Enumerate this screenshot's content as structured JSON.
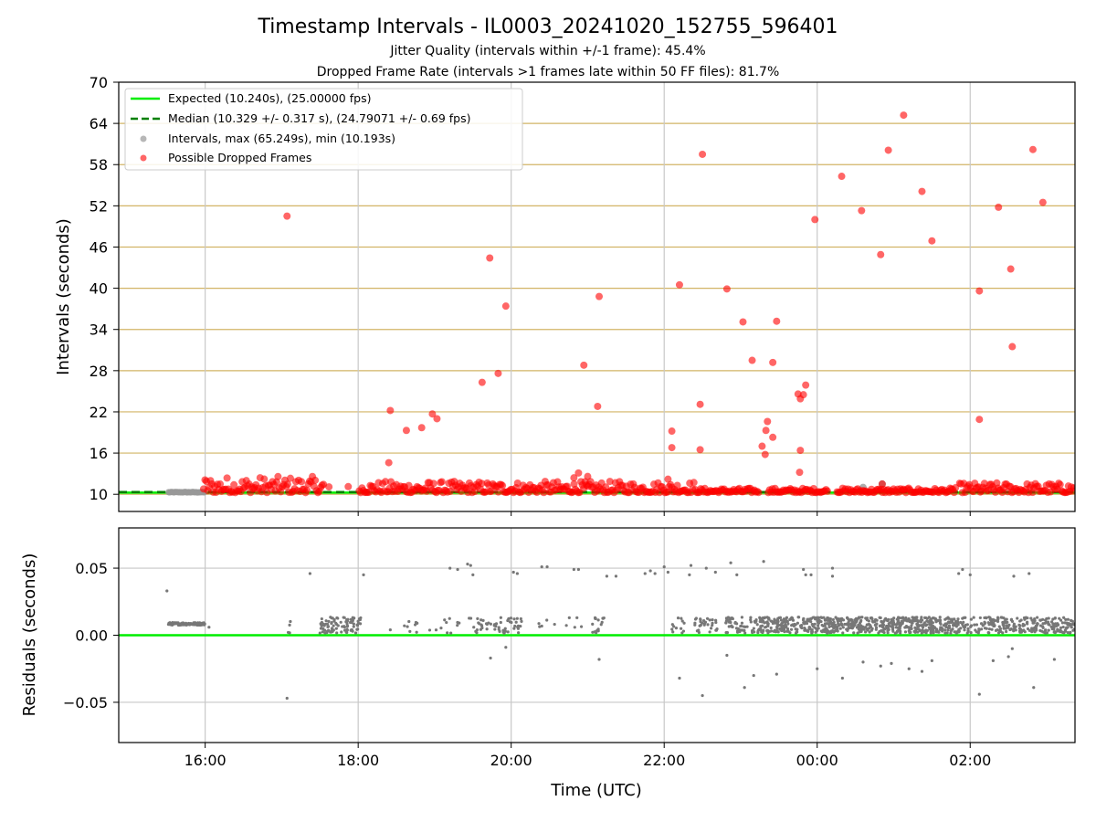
{
  "chart_data": [
    {
      "type": "scatter",
      "title": "Timestamp Intervals - IL0003_20241020_152755_596401",
      "subtitles": [
        "Jitter Quality (intervals within +/-1 frame): 45.4%",
        "Dropped Frame Rate (intervals >1 frames late within 50 FF files): 81.7%"
      ],
      "xlabel": "",
      "ylabel": "Intervals (seconds)",
      "xlim_hours": [
        14.87,
        27.37
      ],
      "ylim": [
        7.5,
        70
      ],
      "yticks": [
        10,
        16,
        22,
        28,
        34,
        40,
        46,
        52,
        58,
        64,
        70
      ],
      "xticks": [
        {
          "value": 16,
          "label": "16:00"
        },
        {
          "value": 18,
          "label": "18:00"
        },
        {
          "value": 20,
          "label": "20:00"
        },
        {
          "value": 22,
          "label": "22:00"
        },
        {
          "value": 24,
          "label": "00:00"
        },
        {
          "value": 26,
          "label": "02:00"
        }
      ],
      "grid": true,
      "legend_position": "upper-left",
      "expected_interval": 10.24,
      "median_interval": 10.329,
      "colors": {
        "expected": "#00ee00",
        "median": "#008000",
        "intervals": "#999999",
        "dropped": "#ff0000",
        "hgrid": "#d2b466",
        "vgrid": "#c8c8c8"
      },
      "legend": [
        {
          "label": "Expected (10.240s), (25.00000 fps)",
          "marker": "solid-line",
          "color": "#00ee00"
        },
        {
          "label": "Median (10.329 +/- 0.317 s), (24.79071 +/- 0.69 fps)",
          "marker": "dashed-line",
          "color": "#008000"
        },
        {
          "label": "Intervals, max (65.249s), min (10.193s)",
          "marker": "dot",
          "color": "#999999"
        },
        {
          "label": "Possible Dropped Frames",
          "marker": "dot",
          "color": "#ff0000"
        }
      ],
      "baseline_band": {
        "y_low": 10.2,
        "y_high": 11.9,
        "x_start": 15.55,
        "x_end": 27.37
      },
      "dropped_frames": [
        {
          "x": 17.07,
          "y": 50.5
        },
        {
          "x": 18.42,
          "y": 22.2
        },
        {
          "x": 18.4,
          "y": 14.6
        },
        {
          "x": 18.63,
          "y": 19.3
        },
        {
          "x": 18.83,
          "y": 19.7
        },
        {
          "x": 18.97,
          "y": 21.7
        },
        {
          "x": 19.03,
          "y": 21.0
        },
        {
          "x": 19.62,
          "y": 26.3
        },
        {
          "x": 19.72,
          "y": 44.4
        },
        {
          "x": 19.83,
          "y": 27.6
        },
        {
          "x": 19.93,
          "y": 37.4
        },
        {
          "x": 20.95,
          "y": 28.8
        },
        {
          "x": 21.15,
          "y": 38.8
        },
        {
          "x": 21.13,
          "y": 22.8
        },
        {
          "x": 22.1,
          "y": 19.2
        },
        {
          "x": 22.1,
          "y": 16.8
        },
        {
          "x": 22.2,
          "y": 40.5
        },
        {
          "x": 22.47,
          "y": 23.1
        },
        {
          "x": 22.47,
          "y": 16.5
        },
        {
          "x": 22.5,
          "y": 59.5
        },
        {
          "x": 22.82,
          "y": 39.9
        },
        {
          "x": 23.03,
          "y": 35.1
        },
        {
          "x": 23.15,
          "y": 29.5
        },
        {
          "x": 23.28,
          "y": 17.0
        },
        {
          "x": 23.32,
          "y": 15.8
        },
        {
          "x": 23.33,
          "y": 19.3
        },
        {
          "x": 23.35,
          "y": 20.6
        },
        {
          "x": 23.42,
          "y": 18.3
        },
        {
          "x": 23.42,
          "y": 29.2
        },
        {
          "x": 23.47,
          "y": 35.2
        },
        {
          "x": 23.75,
          "y": 24.6
        },
        {
          "x": 23.78,
          "y": 23.9
        },
        {
          "x": 23.82,
          "y": 24.5
        },
        {
          "x": 23.85,
          "y": 25.9
        },
        {
          "x": 23.78,
          "y": 16.4
        },
        {
          "x": 23.77,
          "y": 13.2
        },
        {
          "x": 23.97,
          "y": 50.0
        },
        {
          "x": 24.32,
          "y": 56.3
        },
        {
          "x": 24.58,
          "y": 51.3
        },
        {
          "x": 24.83,
          "y": 44.9
        },
        {
          "x": 24.93,
          "y": 60.1
        },
        {
          "x": 25.13,
          "y": 65.2
        },
        {
          "x": 25.37,
          "y": 54.1
        },
        {
          "x": 25.5,
          "y": 46.9
        },
        {
          "x": 26.12,
          "y": 39.6
        },
        {
          "x": 26.12,
          "y": 20.9
        },
        {
          "x": 26.37,
          "y": 51.8
        },
        {
          "x": 26.53,
          "y": 42.8
        },
        {
          "x": 26.55,
          "y": 31.5
        },
        {
          "x": 26.82,
          "y": 60.2
        },
        {
          "x": 26.95,
          "y": 52.5
        },
        {
          "x": 20.88,
          "y": 13.1
        },
        {
          "x": 20.82,
          "y": 12.4
        },
        {
          "x": 21.0,
          "y": 12.6
        },
        {
          "x": 22.05,
          "y": 12.2
        },
        {
          "x": 24.85,
          "y": 11.5
        }
      ]
    },
    {
      "type": "scatter",
      "title": "",
      "xlabel": "Time (UTC)",
      "ylabel": "Residuals (seconds)",
      "xlim_hours": [
        14.87,
        27.37
      ],
      "ylim": [
        -0.08,
        0.08
      ],
      "yticks": [
        {
          "value": 0.05,
          "label": "0.05"
        },
        {
          "value": 0.0,
          "label": "0.00"
        },
        {
          "value": -0.05,
          "label": "−0.05"
        }
      ],
      "grid": true,
      "zero_line_color": "#00ee00",
      "point_color": "#777777",
      "outliers": [
        {
          "x": 15.5,
          "y": 0.033
        },
        {
          "x": 17.07,
          "y": -0.047
        },
        {
          "x": 17.37,
          "y": 0.046
        },
        {
          "x": 18.07,
          "y": 0.045
        },
        {
          "x": 19.2,
          "y": 0.05
        },
        {
          "x": 19.3,
          "y": 0.049
        },
        {
          "x": 19.43,
          "y": 0.053
        },
        {
          "x": 19.47,
          "y": 0.052
        },
        {
          "x": 19.5,
          "y": 0.045
        },
        {
          "x": 19.73,
          "y": -0.017
        },
        {
          "x": 19.93,
          "y": -0.009
        },
        {
          "x": 20.03,
          "y": 0.047
        },
        {
          "x": 20.08,
          "y": 0.046
        },
        {
          "x": 20.4,
          "y": 0.051
        },
        {
          "x": 20.47,
          "y": 0.051
        },
        {
          "x": 20.82,
          "y": 0.049
        },
        {
          "x": 20.88,
          "y": 0.049
        },
        {
          "x": 21.15,
          "y": -0.018
        },
        {
          "x": 21.25,
          "y": 0.044
        },
        {
          "x": 21.37,
          "y": 0.044
        },
        {
          "x": 21.75,
          "y": 0.046
        },
        {
          "x": 21.82,
          "y": 0.048
        },
        {
          "x": 21.88,
          "y": 0.046
        },
        {
          "x": 22.0,
          "y": 0.051
        },
        {
          "x": 22.05,
          "y": 0.047
        },
        {
          "x": 22.2,
          "y": -0.032
        },
        {
          "x": 22.33,
          "y": 0.045
        },
        {
          "x": 22.35,
          "y": 0.052
        },
        {
          "x": 22.5,
          "y": -0.045
        },
        {
          "x": 22.55,
          "y": 0.05
        },
        {
          "x": 22.67,
          "y": 0.047
        },
        {
          "x": 22.82,
          "y": -0.015
        },
        {
          "x": 22.87,
          "y": 0.054
        },
        {
          "x": 22.95,
          "y": 0.045
        },
        {
          "x": 23.05,
          "y": -0.039
        },
        {
          "x": 23.17,
          "y": -0.03
        },
        {
          "x": 23.3,
          "y": 0.055
        },
        {
          "x": 23.47,
          "y": -0.029
        },
        {
          "x": 23.82,
          "y": 0.049
        },
        {
          "x": 23.85,
          "y": 0.045
        },
        {
          "x": 23.92,
          "y": 0.045
        },
        {
          "x": 24.0,
          "y": -0.025
        },
        {
          "x": 24.2,
          "y": 0.05
        },
        {
          "x": 24.2,
          "y": 0.044
        },
        {
          "x": 24.33,
          "y": -0.032
        },
        {
          "x": 24.6,
          "y": -0.02
        },
        {
          "x": 24.83,
          "y": -0.023
        },
        {
          "x": 24.97,
          "y": -0.021
        },
        {
          "x": 25.2,
          "y": -0.025
        },
        {
          "x": 25.37,
          "y": -0.027
        },
        {
          "x": 25.5,
          "y": -0.019
        },
        {
          "x": 25.85,
          "y": 0.046
        },
        {
          "x": 25.9,
          "y": 0.049
        },
        {
          "x": 26.0,
          "y": 0.045
        },
        {
          "x": 26.12,
          "y": -0.044
        },
        {
          "x": 26.3,
          "y": -0.019
        },
        {
          "x": 26.5,
          "y": -0.016
        },
        {
          "x": 26.55,
          "y": -0.01
        },
        {
          "x": 26.57,
          "y": 0.044
        },
        {
          "x": 26.77,
          "y": 0.046
        },
        {
          "x": 26.83,
          "y": -0.039
        },
        {
          "x": 27.1,
          "y": -0.018
        }
      ]
    }
  ]
}
